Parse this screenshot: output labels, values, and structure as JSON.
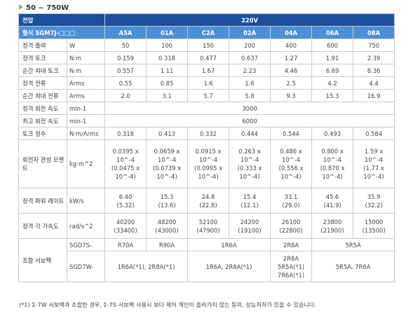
{
  "heading": "50 ~ 750W",
  "header": {
    "voltage_label": "전압",
    "voltage_value": "220V",
    "model_label": "형식 SGM7J-□□□",
    "models": [
      "A5A",
      "01A",
      "C2A",
      "02A",
      "04A",
      "06A",
      "08A"
    ]
  },
  "rows": [
    {
      "label": "정격 출력",
      "unit": "W",
      "values": [
        "50",
        "100",
        "150",
        "200",
        "400",
        "600",
        "750"
      ]
    },
    {
      "label": "정격 토크",
      "unit": "N·m",
      "values": [
        "0.159",
        "0.318",
        "0.477",
        "0.637",
        "1.27",
        "1.91",
        "2.39"
      ]
    },
    {
      "label": "순간 최대 토크",
      "unit": "N·m",
      "values": [
        "0.557",
        "1.11",
        "1.67",
        "2.23",
        "4.46",
        "6.69",
        "8.36"
      ]
    },
    {
      "label": "정격 전류",
      "unit": "Arms",
      "values": [
        "0.55",
        "0.85",
        "1.6",
        "1.6",
        "2.5",
        "4.2",
        "4.4"
      ]
    },
    {
      "label": "순간 최대 전류",
      "unit": "Arms",
      "values": [
        "2.0",
        "3.1",
        "5.7",
        "5.8",
        "9.3",
        "15.3",
        "16.9"
      ]
    }
  ],
  "rated_speed": {
    "label": "정격 회전 속도",
    "unit": "min-1",
    "value": "3000"
  },
  "max_speed": {
    "label": "최고 회전 속도",
    "unit": "min-1",
    "value": "6000"
  },
  "torque_constant": {
    "label": "토크 정수",
    "unit": "N·m/Arms",
    "values": [
      "0.318",
      "0.413",
      "0.332",
      "0.444",
      "0.544",
      "0.493",
      "0.584"
    ]
  },
  "inertia": {
    "label": "회전자 관성 모멘트",
    "unit": "kg·m^2",
    "cells": [
      [
        "0.0395 x",
        "10^-4",
        "(0.0475 x",
        "10^-4)"
      ],
      [
        "0.0659 x",
        "10^-4",
        "(0.0739 x",
        "10^-4)"
      ],
      [
        "0.0915 x",
        "10^-4",
        "(0.0995 x",
        "10^-4)"
      ],
      [
        "0.263 x",
        "10^-4",
        "(0.333 x",
        "10^-4)"
      ],
      [
        "0.486 x",
        "10^-4",
        "(0.556 x",
        "10^-4)"
      ],
      [
        "0.800 x",
        "10^-4",
        "(0.870 x",
        "10^-4)"
      ],
      [
        "1.59 x",
        "10^-4",
        "(1.77 x",
        "10^-4)"
      ]
    ]
  },
  "power_rate": {
    "label": "정격 파워 레이트",
    "unit": "kW/s",
    "cells": [
      [
        "6.40",
        "(5.32)"
      ],
      [
        "15.3",
        "(13.6)"
      ],
      [
        "24.8",
        "(22.8)"
      ],
      [
        "15.4",
        "(12.1)"
      ],
      [
        "33.1",
        "(29.0)"
      ],
      [
        "45.6",
        "(41.9)"
      ],
      [
        "35.9",
        "(32.2)"
      ]
    ]
  },
  "accel": {
    "label": "정격 각 가속도",
    "unit": "rad/s^2",
    "cells": [
      [
        "40200",
        "(33400)"
      ],
      [
        "48200",
        "(43000)"
      ],
      [
        "52100",
        "(47900)"
      ],
      [
        "24200",
        "(19100)"
      ],
      [
        "26100",
        "(22800)"
      ],
      [
        "23800",
        "(21900)"
      ],
      [
        "15000",
        "(13500)"
      ]
    ]
  },
  "servo": {
    "label": "조합 서보팩",
    "sgd7s_label": "SGD7S-",
    "sgd7s": [
      "R70A",
      "R90A",
      "1R6A",
      "2R8A",
      "5R5A"
    ],
    "sgd7w_label": "SGD7W-",
    "sgd7w_a": "1R6A(*1), 2R8A(*1)",
    "sgd7w_b": "1R6A, 2R8A(*1)",
    "sgd7w_c": [
      "2R8A",
      "5R5A(*1)",
      "7R6A(*1)"
    ],
    "sgd7w_d": "5R5A, 7R6A"
  },
  "footnote": "(*1) Σ-7W 서보팩과 조합한 경우, Σ-7S 서보팩 사용시 보다 제어 게인이 올라가지 않는 등의, 성능저하가 있을 수 있습니다."
}
